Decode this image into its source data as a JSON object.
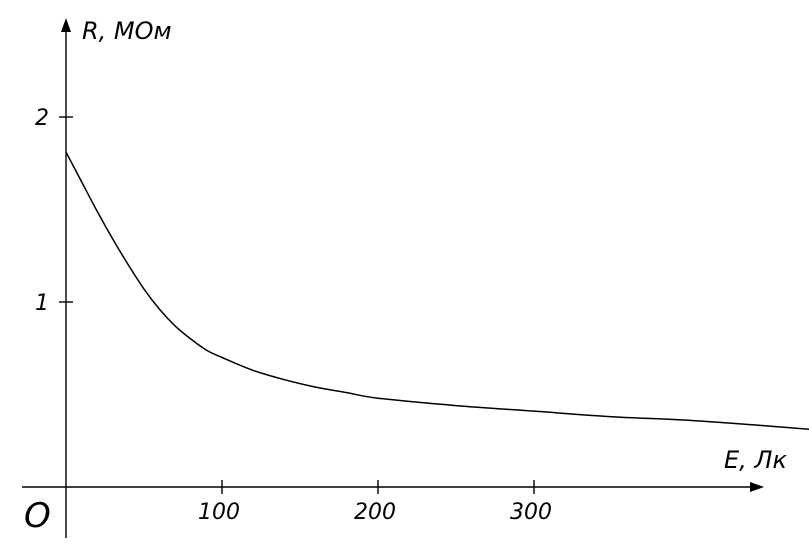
{
  "chart_data": {
    "type": "line",
    "xlabel": "E, Лк",
    "ylabel": "R, МОм",
    "origin_label": "O",
    "xlim": [
      0,
      480
    ],
    "ylim": [
      0,
      2.35
    ],
    "xticks": [
      100,
      200,
      300
    ],
    "xtick_labels": [
      "100",
      "200",
      "300"
    ],
    "yticks": [
      1,
      2
    ],
    "ytick_labels": [
      "1",
      "2"
    ],
    "grid": false,
    "legend": "none",
    "series": [
      {
        "x": [
          0,
          10,
          20,
          30,
          40,
          50,
          60,
          70,
          80,
          90,
          100,
          120,
          140,
          160,
          180,
          200,
          250,
          300,
          350,
          400,
          450,
          480
        ],
        "y": [
          1.81,
          1.65,
          1.49,
          1.34,
          1.2,
          1.07,
          0.96,
          0.87,
          0.8,
          0.74,
          0.7,
          0.63,
          0.58,
          0.54,
          0.51,
          0.48,
          0.44,
          0.41,
          0.38,
          0.36,
          0.33,
          0.31
        ]
      }
    ],
    "colors": {
      "line": "#000000",
      "axis": "#000000",
      "background": "#ffffff"
    }
  }
}
